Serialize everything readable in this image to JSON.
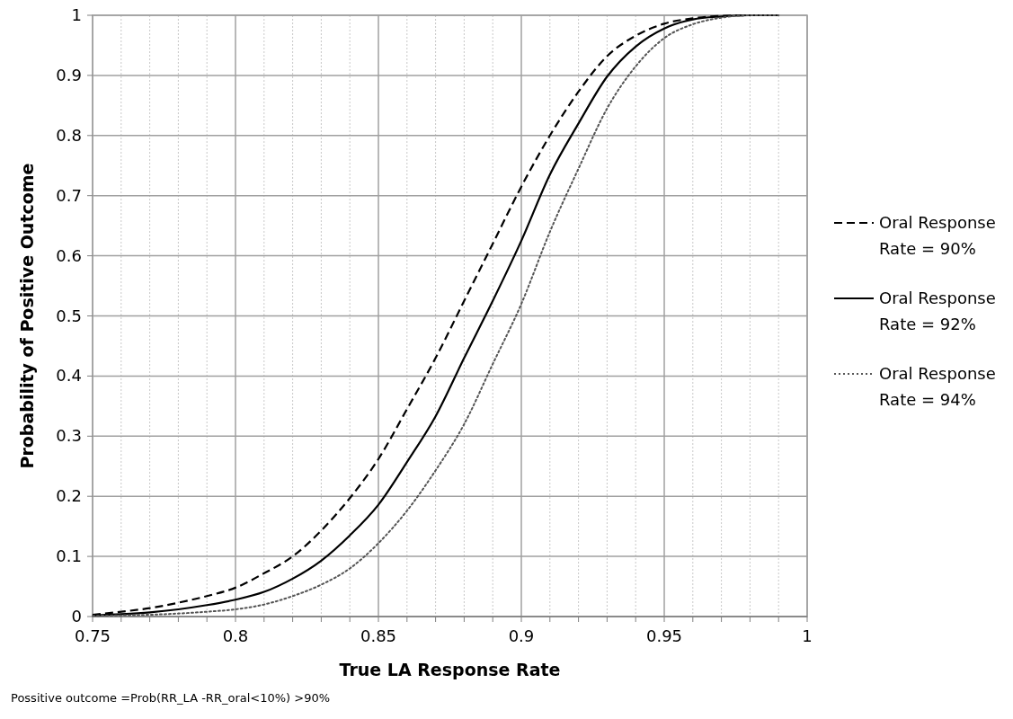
{
  "chart_data": {
    "type": "line",
    "xlabel": "True LA Response Rate",
    "ylabel": "Probability of Positive Outcome",
    "annotations": [
      "Possitive outcome =Prob(RR_LA -RR_oral<10%) >90%"
    ],
    "x": [
      0.75,
      0.76,
      0.77,
      0.78,
      0.79,
      0.8,
      0.81,
      0.82,
      0.83,
      0.84,
      0.85,
      0.86,
      0.87,
      0.88,
      0.89,
      0.9,
      0.91,
      0.92,
      0.93,
      0.94,
      0.95,
      0.96,
      0.97,
      0.98,
      0.99
    ],
    "series": [
      {
        "name": "Oral Response Rate = 90%",
        "color": "#000000",
        "line_style": "dashed",
        "values": [
          0.003,
          0.008,
          0.014,
          0.023,
          0.034,
          0.048,
          0.072,
          0.1,
          0.143,
          0.197,
          0.262,
          0.345,
          0.43,
          0.525,
          0.62,
          0.715,
          0.8,
          0.873,
          0.932,
          0.966,
          0.986,
          0.995,
          0.999,
          1,
          1
        ]
      },
      {
        "name": "Oral Response Rate = 92%",
        "color": "#000000",
        "line_style": "solid",
        "values": [
          0.002,
          0.004,
          0.007,
          0.012,
          0.019,
          0.028,
          0.041,
          0.063,
          0.093,
          0.135,
          0.186,
          0.257,
          0.333,
          0.43,
          0.525,
          0.625,
          0.735,
          0.82,
          0.898,
          0.948,
          0.978,
          0.993,
          0.998,
          1,
          1
        ]
      },
      {
        "name": "Oral Response Rate = 94%",
        "color": "#555555",
        "line_style": "dotted",
        "values": [
          0.001,
          0.002,
          0.003,
          0.005,
          0.008,
          0.012,
          0.02,
          0.034,
          0.053,
          0.08,
          0.122,
          0.176,
          0.243,
          0.32,
          0.42,
          0.52,
          0.64,
          0.745,
          0.845,
          0.915,
          0.962,
          0.985,
          0.996,
          1,
          1
        ]
      }
    ],
    "xlim": [
      0.75,
      1
    ],
    "xticks": [
      0.75,
      {
        "value": 0.76,
        "label": null
      },
      {
        "value": 0.77,
        "label": null
      },
      {
        "value": 0.78,
        "label": null
      },
      {
        "value": 0.79,
        "label": null
      },
      0.8,
      {
        "value": 0.81,
        "label": null
      },
      {
        "value": 0.82,
        "label": null
      },
      {
        "value": 0.83,
        "label": null
      },
      {
        "value": 0.84,
        "label": null
      },
      0.85,
      {
        "value": 0.86,
        "label": null
      },
      {
        "value": 0.87,
        "label": null
      },
      {
        "value": 0.88,
        "label": null
      },
      {
        "value": 0.89,
        "label": null
      },
      0.9,
      {
        "value": 0.91,
        "label": null
      },
      {
        "value": 0.92,
        "label": null
      },
      {
        "value": 0.93,
        "label": null
      },
      {
        "value": 0.94,
        "label": null
      },
      0.95,
      {
        "value": 0.96,
        "label": null
      },
      {
        "value": 0.97,
        "label": null
      },
      {
        "value": 0.98,
        "label": null
      },
      {
        "value": 0.99,
        "label": null
      },
      1
    ],
    "ylim": [
      0,
      1
    ],
    "yticks": [
      0,
      0.1,
      0.2,
      0.3,
      0.4,
      0.5,
      0.6,
      0.7,
      0.8,
      0.9,
      1
    ],
    "grid": true,
    "legend": "right"
  }
}
